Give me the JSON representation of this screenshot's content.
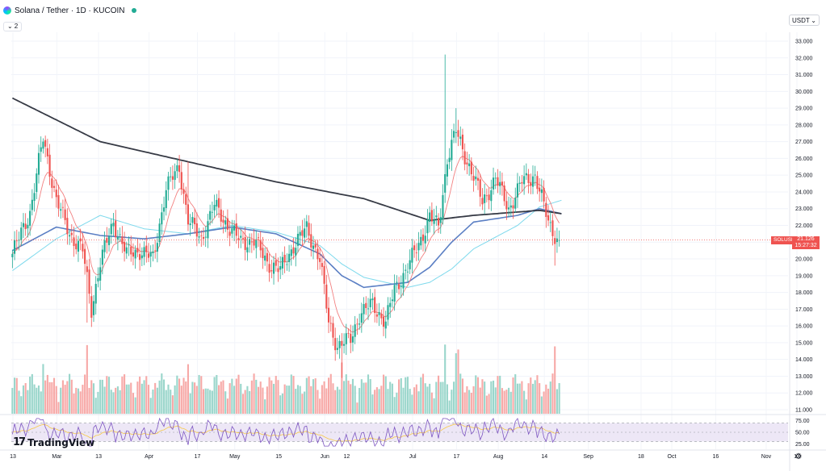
{
  "header": {
    "title": "Solana / Tether · 1D · KUCOIN",
    "collapse_count": "2"
  },
  "currency": {
    "label": "USDT"
  },
  "price_tag": {
    "symbol": "SOLUSDT",
    "value": "21.126",
    "countdown": "15:27:32"
  },
  "branding": {
    "logo_mark": "17",
    "name": "TradingView"
  },
  "icons": {
    "settings": "gear-icon",
    "chevron": "chevron-down-icon"
  },
  "colors": {
    "up": "#22ab94",
    "down": "#ef5350",
    "up_volume": "#9ad6cb",
    "down_volume": "#f7a9a7",
    "ma_black": "#363a45",
    "ma_blue": "#5b7fc4",
    "ma_cyan": "#7dd9ec",
    "ma_red": "#f28080",
    "rsi_line": "#7e57c2",
    "rsi_band": "#ede7f6"
  },
  "chart_data": {
    "type": "candlestick",
    "price_axis": {
      "ticks": [
        "33.000",
        "32.000",
        "31.000",
        "30.000",
        "29.000",
        "28.000",
        "27.000",
        "26.000",
        "25.000",
        "24.000",
        "23.000",
        "22.000",
        "21.000",
        "20.000",
        "19.000",
        "18.000",
        "17.000",
        "16.000",
        "15.000",
        "14.000",
        "13.000",
        "12.000",
        "11.000"
      ],
      "ylim": [
        11,
        33
      ]
    },
    "time_axis": {
      "ticks": [
        "13",
        "Mar",
        "13",
        "Apr",
        "17",
        "May",
        "15",
        "Jun",
        "12",
        "Jul",
        "17",
        "Aug",
        "14",
        "Sep",
        "18",
        "Oct",
        "16",
        "Nov",
        "13"
      ]
    },
    "rsi_axis": {
      "ticks": [
        "75.00",
        "50.00",
        "25.00"
      ],
      "band": [
        30,
        70
      ]
    },
    "last_price": 21.126,
    "anchors": [
      [
        0,
        20.3
      ],
      [
        8,
        22.8
      ],
      [
        14,
        27.2
      ],
      [
        20,
        23.5
      ],
      [
        26,
        21.5
      ],
      [
        32,
        20.5
      ],
      [
        36,
        17.0
      ],
      [
        40,
        19.8
      ],
      [
        46,
        22.2
      ],
      [
        52,
        20.3
      ],
      [
        58,
        20.5
      ],
      [
        64,
        20.0
      ],
      [
        70,
        24.2
      ],
      [
        76,
        25.5
      ],
      [
        80,
        22.3
      ],
      [
        86,
        21.2
      ],
      [
        92,
        23.2
      ],
      [
        98,
        22.0
      ],
      [
        104,
        21.0
      ],
      [
        110,
        21.1
      ],
      [
        116,
        19.8
      ],
      [
        122,
        19.3
      ],
      [
        128,
        20.8
      ],
      [
        134,
        21.8
      ],
      [
        140,
        20.0
      ],
      [
        144,
        16.2
      ],
      [
        148,
        14.8
      ],
      [
        154,
        15.2
      ],
      [
        158,
        16.7
      ],
      [
        164,
        17.3
      ],
      [
        170,
        16.2
      ],
      [
        174,
        18.2
      ],
      [
        180,
        19.5
      ],
      [
        186,
        21.2
      ],
      [
        190,
        22.5
      ],
      [
        194,
        21.9
      ],
      [
        198,
        26.0
      ],
      [
        202,
        27.6
      ],
      [
        206,
        26.2
      ],
      [
        210,
        24.9
      ],
      [
        214,
        23.4
      ],
      [
        220,
        24.8
      ],
      [
        226,
        23.0
      ],
      [
        232,
        24.6
      ],
      [
        238,
        25.0
      ],
      [
        244,
        22.2
      ],
      [
        248,
        21.2
      ],
      [
        250,
        21.1
      ]
    ],
    "moving_averages": {
      "ma200": [
        [
          0,
          29.6
        ],
        [
          40,
          27.0
        ],
        [
          80,
          25.8
        ],
        [
          120,
          24.6
        ],
        [
          160,
          23.6
        ],
        [
          190,
          22.3
        ],
        [
          210,
          22.6
        ],
        [
          240,
          22.9
        ],
        [
          250,
          22.7
        ]
      ],
      "ma50": [
        [
          0,
          20.5
        ],
        [
          20,
          21.9
        ],
        [
          40,
          21.4
        ],
        [
          60,
          21.2
        ],
        [
          80,
          21.5
        ],
        [
          100,
          21.9
        ],
        [
          120,
          21.5
        ],
        [
          140,
          20.3
        ],
        [
          150,
          19.0
        ],
        [
          160,
          18.3
        ],
        [
          180,
          18.6
        ],
        [
          190,
          19.5
        ],
        [
          200,
          21.0
        ],
        [
          210,
          22.2
        ],
        [
          230,
          22.6
        ],
        [
          240,
          23.0
        ],
        [
          250,
          22.7
        ]
      ],
      "ma100": [
        [
          0,
          19.3
        ],
        [
          20,
          21.2
        ],
        [
          40,
          22.6
        ],
        [
          60,
          21.8
        ],
        [
          80,
          21.5
        ],
        [
          100,
          22.0
        ],
        [
          120,
          21.6
        ],
        [
          140,
          20.8
        ],
        [
          150,
          19.7
        ],
        [
          160,
          18.9
        ],
        [
          180,
          18.3
        ],
        [
          190,
          18.6
        ],
        [
          200,
          19.4
        ],
        [
          210,
          20.6
        ],
        [
          230,
          22.0
        ],
        [
          240,
          23.1
        ],
        [
          250,
          23.5
        ]
      ]
    }
  }
}
